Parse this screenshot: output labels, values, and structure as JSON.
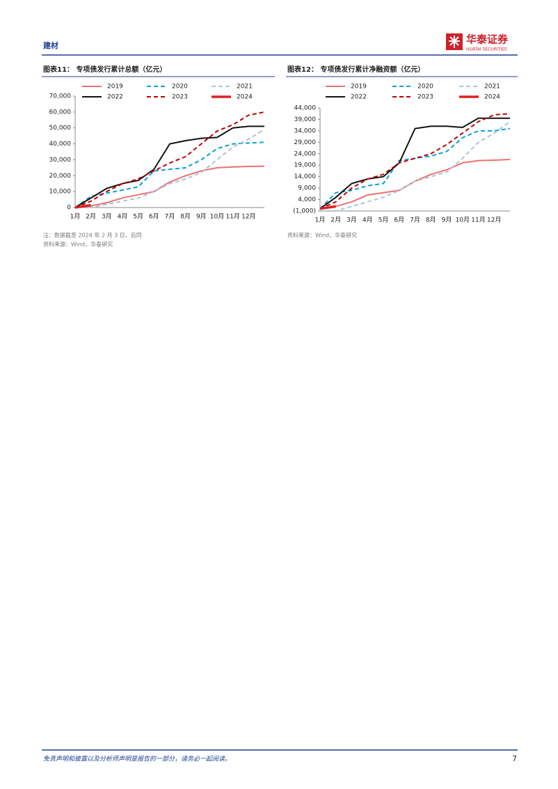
{
  "header": {
    "section": "建材",
    "logo_cn": "华泰证券",
    "logo_en": "HUATAI SECURITIES"
  },
  "chart_data": [
    {
      "type": "line",
      "title": "图表11： 专项债发行累计总额（亿元）",
      "categories": [
        "1月",
        "2月",
        "3月",
        "4月",
        "5月",
        "6月",
        "7月",
        "8月",
        "9月",
        "10月",
        "11月",
        "12月",
        null
      ],
      "ylim": [
        0,
        70000
      ],
      "yticks": [
        0,
        {
          "value": 10000,
          "label": "10,000"
        },
        {
          "value": 20000,
          "label": "20,000"
        },
        {
          "value": 30000,
          "label": "30,000"
        },
        {
          "value": 40000,
          "label": "40,000"
        },
        {
          "value": 50000,
          "label": "50,000"
        },
        {
          "value": 60000,
          "label": "60,000"
        },
        {
          "value": 70000,
          "label": "70,000"
        }
      ],
      "series": [
        {
          "name": "2019",
          "color": "#f07070",
          "dash": false,
          "width": 2,
          "values": [
            0,
            1000,
            3000,
            6000,
            8000,
            10000,
            16000,
            20000,
            23000,
            25000,
            25500,
            25800,
            26000
          ]
        },
        {
          "name": "2020",
          "color": "#00a0e0",
          "dash": true,
          "width": 2,
          "values": [
            0,
            7000,
            9000,
            11000,
            13000,
            23000,
            24000,
            25000,
            30000,
            37000,
            40000,
            40500,
            41000
          ]
        },
        {
          "name": "2021",
          "color": "#a9c4d8",
          "dash": true,
          "width": 2,
          "values": [
            0,
            0,
            2000,
            4000,
            6000,
            10000,
            15000,
            18000,
            22000,
            30000,
            38000,
            43000,
            49000
          ]
        },
        {
          "name": "2022",
          "color": "#111111",
          "dash": false,
          "width": 2,
          "values": [
            0,
            6000,
            12000,
            15000,
            17000,
            24000,
            40000,
            42000,
            43500,
            44000,
            50000,
            51000,
            51000
          ]
        },
        {
          "name": "2023",
          "color": "#c00000",
          "dash": true,
          "width": 2,
          "values": [
            0,
            4000,
            10000,
            15000,
            18000,
            23000,
            28000,
            32000,
            40000,
            48000,
            52000,
            58000,
            60000
          ]
        },
        {
          "name": "2024",
          "color": "#e02020",
          "dash": false,
          "width": 3.5,
          "values": [
            0,
            1500,
            null,
            null,
            null,
            null,
            null,
            null,
            null,
            null,
            null,
            null,
            null
          ]
        }
      ],
      "notes": [
        "注：数据截至 2024 年 2 月 3 日，后同",
        "资料来源：Wind，华泰研究"
      ]
    },
    {
      "type": "line",
      "title": "图表12： 专项债发行累计净融资额（亿元）",
      "categories": [
        "1月",
        "2月",
        "3月",
        "4月",
        "5月",
        "6月",
        "7月",
        "8月",
        "9月",
        "10月",
        "11月",
        "12月",
        null
      ],
      "ylim": [
        -1000,
        44000
      ],
      "yticks": [
        {
          "value": -1000,
          "label": "(1,000)"
        },
        {
          "value": 4000,
          "label": "4,000"
        },
        {
          "value": 9000,
          "label": "9,000"
        },
        {
          "value": 14000,
          "label": "14,000"
        },
        {
          "value": 19000,
          "label": "19,000"
        },
        {
          "value": 24000,
          "label": "24,000"
        },
        {
          "value": 29000,
          "label": "29,000"
        },
        {
          "value": 34000,
          "label": "34,000"
        },
        {
          "value": 39000,
          "label": "39,000"
        },
        {
          "value": 44000,
          "label": "44,000"
        }
      ],
      "series": [
        {
          "name": "2019",
          "color": "#f07070",
          "dash": false,
          "width": 2,
          "values": [
            0,
            1000,
            3000,
            6000,
            7000,
            8000,
            12000,
            15000,
            17000,
            20000,
            21000,
            21200,
            21500
          ]
        },
        {
          "name": "2020",
          "color": "#00a0e0",
          "dash": true,
          "width": 2,
          "values": [
            0,
            7000,
            8000,
            10000,
            11000,
            21000,
            22000,
            23000,
            25000,
            31000,
            34000,
            34000,
            35000
          ]
        },
        {
          "name": "2021",
          "color": "#a9c4d8",
          "dash": true,
          "width": 2,
          "values": [
            -1000,
            -1000,
            1000,
            3000,
            5000,
            8000,
            12000,
            14000,
            16000,
            22000,
            29000,
            33000,
            38000
          ]
        },
        {
          "name": "2022",
          "color": "#111111",
          "dash": false,
          "width": 2,
          "values": [
            0,
            5000,
            11000,
            13000,
            14000,
            20000,
            35000,
            36000,
            36000,
            35500,
            39500,
            39500,
            39500
          ]
        },
        {
          "name": "2023",
          "color": "#c00000",
          "dash": true,
          "width": 2,
          "values": [
            0,
            3000,
            9000,
            13000,
            15000,
            20000,
            22000,
            24000,
            28000,
            33000,
            38000,
            41000,
            41500
          ]
        },
        {
          "name": "2024",
          "color": "#e02020",
          "dash": false,
          "width": 3.5,
          "values": [
            0,
            1000,
            null,
            null,
            null,
            null,
            null,
            null,
            null,
            null,
            null,
            null,
            null
          ]
        }
      ],
      "notes": [
        "资料来源：Wind，华泰研究"
      ]
    }
  ],
  "footer": {
    "disclaimer": "免责声明和披露以及分析师声明是报告的一部分，请务必一起阅读。",
    "page": 7
  }
}
